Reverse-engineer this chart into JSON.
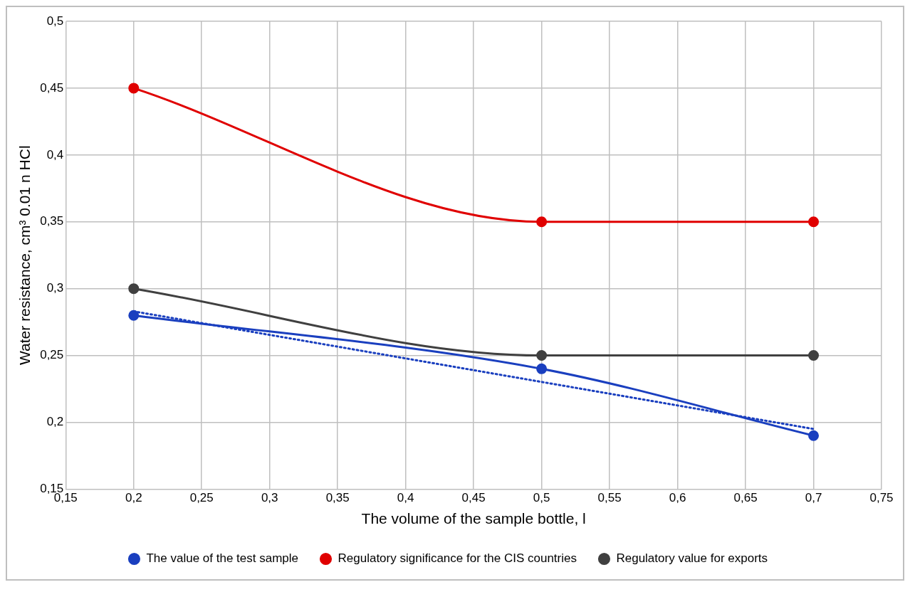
{
  "chart_data": {
    "type": "line",
    "xlabel": "The volume of the sample bottle, l",
    "ylabel": "Water resistance, cm³ 0.01 n HCl",
    "xlim": [
      0.15,
      0.75
    ],
    "xticks": [
      {
        "value": 0.15,
        "label": "0,15"
      },
      {
        "value": 0.2,
        "label": "0,2"
      },
      {
        "value": 0.25,
        "label": "0,25"
      },
      {
        "value": 0.3,
        "label": "0,3"
      },
      {
        "value": 0.35,
        "label": "0,35"
      },
      {
        "value": 0.4,
        "label": "0,4"
      },
      {
        "value": 0.45,
        "label": "0,45"
      },
      {
        "value": 0.5,
        "label": "0,5"
      },
      {
        "value": 0.55,
        "label": "0,55"
      },
      {
        "value": 0.6,
        "label": "0,6"
      },
      {
        "value": 0.65,
        "label": "0,65"
      },
      {
        "value": 0.7,
        "label": "0,7"
      },
      {
        "value": 0.75,
        "label": "0,75"
      }
    ],
    "ylim": [
      0.15,
      0.5
    ],
    "yticks": [
      {
        "value": 0.15,
        "label": "0,15"
      },
      {
        "value": 0.2,
        "label": "0,2"
      },
      {
        "value": 0.25,
        "label": "0,25"
      },
      {
        "value": 0.3,
        "label": "0,3"
      },
      {
        "value": 0.35,
        "label": "0,35"
      },
      {
        "value": 0.4,
        "label": "0,4"
      },
      {
        "value": 0.45,
        "label": "0,45"
      },
      {
        "value": 0.5,
        "label": "0,5"
      }
    ],
    "x": [
      0.2,
      0.5,
      0.7
    ],
    "grid": true,
    "legend": "bottom",
    "marker": "circle",
    "line_style": "solid",
    "series": [
      {
        "name": "The value of the test sample",
        "color": "#1a3fbf",
        "values": [
          0.28,
          0.24,
          0.19
        ]
      },
      {
        "name": "Regulatory significance for the CIS countries",
        "color": "#e00000",
        "values": [
          0.45,
          0.35,
          0.35
        ]
      },
      {
        "name": "Regulatory value for exports",
        "color": "#404040",
        "values": [
          0.3,
          0.25,
          0.25
        ]
      },
      {
        "type": "line",
        "color": "#1a3fbf",
        "x": [
          0.2,
          0.7
        ],
        "values": [
          0.283,
          0.195
        ],
        "marker": "none",
        "line_style": "dotted"
      }
    ]
  }
}
